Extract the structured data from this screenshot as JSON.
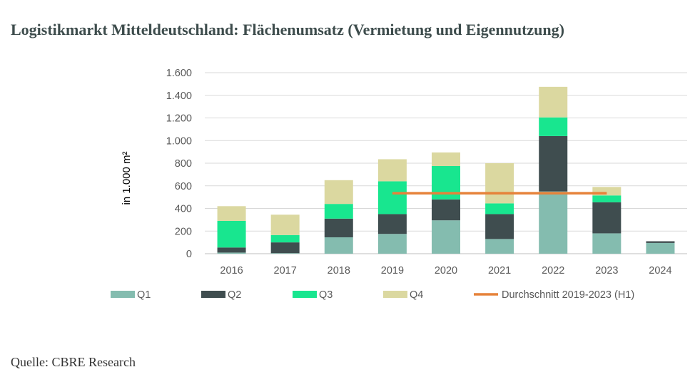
{
  "header": {
    "title": "Logistikmarkt Mitteldeutschland: Flächenumsatz (Vermietung und Eigennutzung)"
  },
  "footer": {
    "source": "Quelle: CBRE Research"
  },
  "chart_data": {
    "type": "bar",
    "stacked": true,
    "categories": [
      "2016",
      "2017",
      "2018",
      "2019",
      "2020",
      "2021",
      "2022",
      "2023",
      "2024"
    ],
    "series": [
      {
        "name": "Q1",
        "color": "#84bcaf",
        "values": [
          10,
          5,
          145,
          175,
          295,
          130,
          550,
          180,
          95
        ]
      },
      {
        "name": "Q2",
        "color": "#3f4d4f",
        "values": [
          45,
          95,
          165,
          175,
          185,
          220,
          490,
          275,
          15
        ]
      },
      {
        "name": "Q3",
        "color": "#18e68f",
        "values": [
          235,
          65,
          130,
          290,
          295,
          95,
          165,
          60,
          0
        ]
      },
      {
        "name": "Q4",
        "color": "#dbd8a0",
        "values": [
          130,
          180,
          210,
          195,
          120,
          355,
          270,
          75,
          0
        ]
      }
    ],
    "average_line": {
      "name": "Durchschnitt 2019-2023 (H1)",
      "color": "#e6823a",
      "value": 535,
      "from": "2019",
      "to": "2023"
    },
    "ylabel": "in 1.000 m²",
    "ylim": [
      0,
      1600
    ],
    "yticks": [
      {
        "value": 0,
        "label": "0"
      },
      {
        "value": 200,
        "label": "200"
      },
      {
        "value": 400,
        "label": "400"
      },
      {
        "value": 600,
        "label": "600"
      },
      {
        "value": 800,
        "label": "800"
      },
      {
        "value": 1000,
        "label": "1.000"
      },
      {
        "value": 1200,
        "label": "1.200"
      },
      {
        "value": 1400,
        "label": "1.400"
      },
      {
        "value": 1600,
        "label": "1.600"
      }
    ],
    "grid": true,
    "legend_position": "bottom"
  }
}
